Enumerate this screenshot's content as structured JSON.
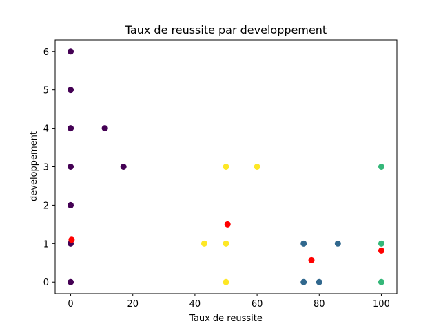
{
  "chart_data": {
    "type": "scatter",
    "title": "Taux de reussite par developpement",
    "xlabel": "Taux de reussite",
    "ylabel": "developpement",
    "xlim": [
      -5,
      105
    ],
    "ylim": [
      -0.3,
      6.3
    ],
    "xticks": [
      0,
      20,
      40,
      60,
      80,
      100
    ],
    "yticks": [
      0,
      1,
      2,
      3,
      4,
      5,
      6
    ],
    "grid": false,
    "colors": {
      "purple": "#440154",
      "blue": "#31688e",
      "green": "#35b779",
      "yellow": "#fde725",
      "red": "#ff0000"
    },
    "points": [
      {
        "x": 0,
        "y": 6,
        "color": "purple"
      },
      {
        "x": 0,
        "y": 5,
        "color": "purple"
      },
      {
        "x": 0,
        "y": 4,
        "color": "purple"
      },
      {
        "x": 11,
        "y": 4,
        "color": "purple"
      },
      {
        "x": 0,
        "y": 3,
        "color": "purple"
      },
      {
        "x": 17,
        "y": 3,
        "color": "purple"
      },
      {
        "x": 0,
        "y": 2,
        "color": "purple"
      },
      {
        "x": 0,
        "y": 1,
        "color": "purple"
      },
      {
        "x": 0,
        "y": 0,
        "color": "purple"
      },
      {
        "x": 0.3,
        "y": 1.1,
        "color": "red"
      },
      {
        "x": 50,
        "y": 3,
        "color": "yellow"
      },
      {
        "x": 60,
        "y": 3,
        "color": "yellow"
      },
      {
        "x": 43,
        "y": 1,
        "color": "yellow"
      },
      {
        "x": 50,
        "y": 1,
        "color": "yellow"
      },
      {
        "x": 50,
        "y": 0,
        "color": "yellow"
      },
      {
        "x": 50.5,
        "y": 1.5,
        "color": "red"
      },
      {
        "x": 75,
        "y": 1,
        "color": "blue"
      },
      {
        "x": 86,
        "y": 1,
        "color": "blue"
      },
      {
        "x": 75,
        "y": 0,
        "color": "blue"
      },
      {
        "x": 80,
        "y": 0,
        "color": "blue"
      },
      {
        "x": 77.5,
        "y": 0.57,
        "color": "red"
      },
      {
        "x": 100,
        "y": 3,
        "color": "green"
      },
      {
        "x": 100,
        "y": 1,
        "color": "green"
      },
      {
        "x": 100,
        "y": 0,
        "color": "green"
      },
      {
        "x": 100,
        "y": 0.82,
        "color": "red"
      }
    ]
  }
}
